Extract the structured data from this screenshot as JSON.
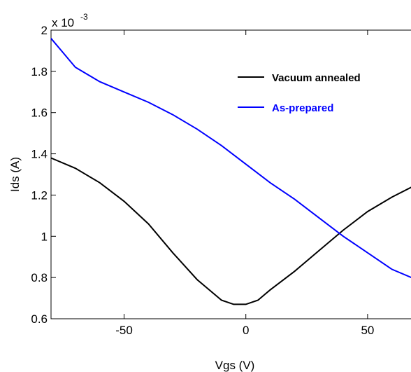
{
  "chart_data": {
    "type": "line",
    "xlabel": "Vgs (V)",
    "ylabel": "Ids (A)",
    "y_multiplier_label": {
      "base": "x 10",
      "exponent": "-3"
    },
    "xlim": [
      -80,
      75
    ],
    "ylim": [
      0.6,
      2.0
    ],
    "x_ticks": [
      -50,
      0,
      50
    ],
    "x_tick_labels": [
      "-50",
      "0",
      "50"
    ],
    "y_ticks": [
      0.6,
      0.8,
      1.0,
      1.2,
      1.4,
      1.6,
      1.8,
      2.0
    ],
    "y_tick_labels": [
      "0.6",
      "0.8",
      "1",
      "1.2",
      "1.4",
      "1.6",
      "1.8",
      "2"
    ],
    "grid": false,
    "legend_position": "top-right",
    "series": [
      {
        "name": "Vacuum annealed",
        "color": "#000000",
        "x": [
          -80,
          -70,
          -60,
          -50,
          -40,
          -30,
          -20,
          -10,
          -5,
          0,
          5,
          10,
          20,
          30,
          40,
          50,
          60,
          70,
          75
        ],
        "y": [
          1.38,
          1.33,
          1.26,
          1.17,
          1.06,
          0.92,
          0.79,
          0.69,
          0.67,
          0.67,
          0.69,
          0.74,
          0.83,
          0.93,
          1.03,
          1.12,
          1.19,
          1.25,
          1.29
        ]
      },
      {
        "name": "As-prepared",
        "color": "#0000ff",
        "x": [
          -80,
          -75,
          -70,
          -60,
          -50,
          -40,
          -30,
          -20,
          -10,
          0,
          10,
          20,
          30,
          40,
          50,
          60,
          70,
          75
        ],
        "y": [
          1.96,
          1.89,
          1.82,
          1.75,
          1.7,
          1.65,
          1.59,
          1.52,
          1.44,
          1.35,
          1.26,
          1.18,
          1.09,
          1.0,
          0.92,
          0.84,
          0.79,
          0.77
        ]
      }
    ]
  }
}
